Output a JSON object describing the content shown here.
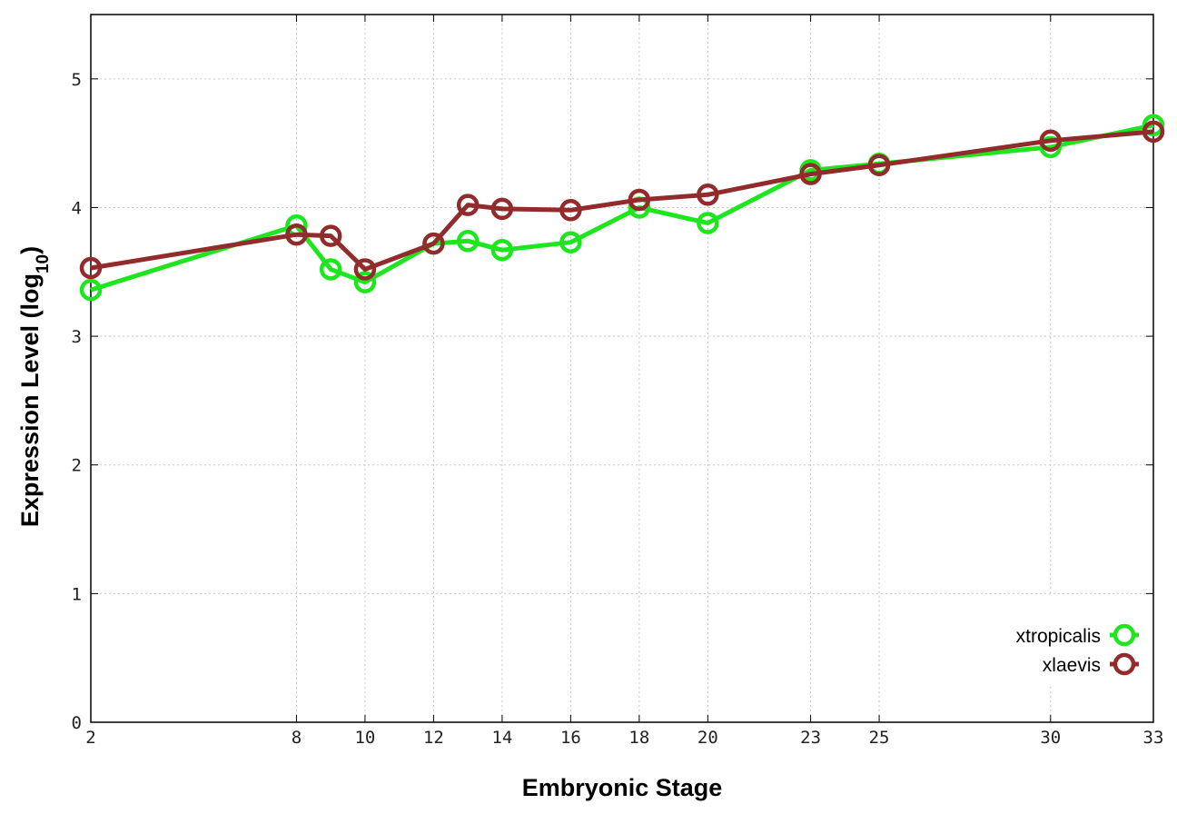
{
  "chart_data": {
    "type": "line",
    "title": "",
    "xlabel": "Embryonic Stage",
    "ylabel_main": "Expression Level (log",
    "ylabel_sub": "10",
    "ylabel_close": ")",
    "x_ticks": [
      2,
      8,
      10,
      12,
      14,
      16,
      18,
      20,
      23,
      25,
      30,
      33
    ],
    "x_tick_labels": [
      "2",
      "8",
      "10",
      "12",
      "14",
      "16",
      "18",
      "20",
      "23",
      "25",
      "30",
      "33"
    ],
    "y_ticks": [
      0,
      1,
      2,
      3,
      4,
      5
    ],
    "y_tick_labels": [
      "0",
      "1",
      "2",
      "3",
      "4",
      "5"
    ],
    "ylim": [
      0,
      5.5
    ],
    "grid": true,
    "legend_position": "bottom-right",
    "x_categories": [
      2,
      8,
      9,
      10,
      12,
      13,
      14,
      16,
      18,
      20,
      23,
      25,
      30,
      33
    ],
    "series": [
      {
        "name": "xtropicalis",
        "color": "#1ee61e",
        "values": [
          3.36,
          3.86,
          3.52,
          3.42,
          3.72,
          3.74,
          3.67,
          3.73,
          4.0,
          3.88,
          4.29,
          4.34,
          4.47,
          4.64
        ]
      },
      {
        "name": "xlaevis",
        "color": "#922b2b",
        "values": [
          3.53,
          3.79,
          3.78,
          3.52,
          3.72,
          4.02,
          3.99,
          3.98,
          4.06,
          4.1,
          4.26,
          4.33,
          4.52,
          4.59
        ]
      }
    ]
  }
}
